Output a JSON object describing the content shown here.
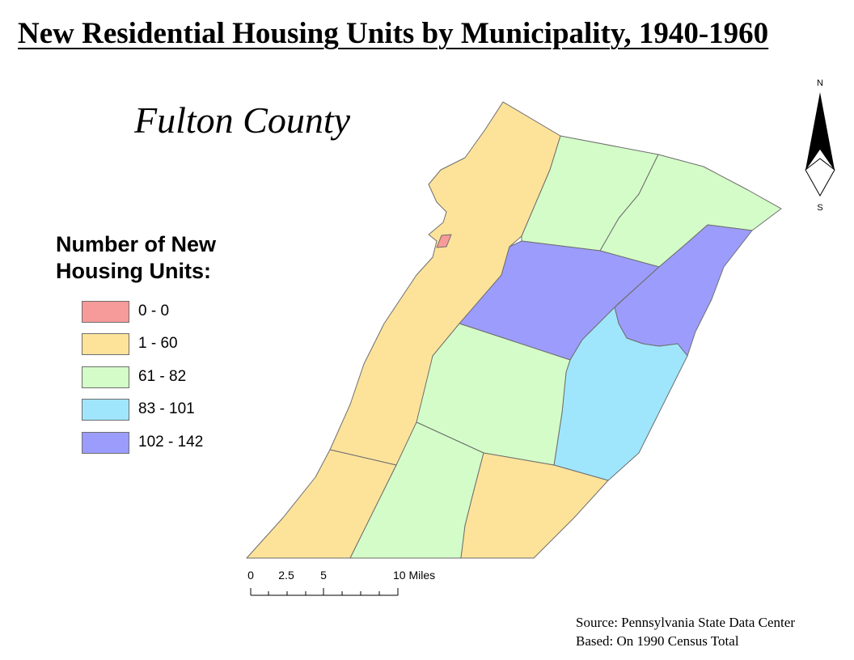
{
  "title": "New Residential Housing Units by Municipality, 1940-1960",
  "county": "Fulton County",
  "legend": {
    "title_line1": "Number of New",
    "title_line2": "Housing Units:",
    "classes": [
      {
        "label": "0 - 0",
        "color": "#f79a9a"
      },
      {
        "label": "1 - 60",
        "color": "#fde39a"
      },
      {
        "label": "61 - 82",
        "color": "#d4fcc8"
      },
      {
        "label": "83 - 101",
        "color": "#9fe6fd"
      },
      {
        "label": "102 - 142",
        "color": "#9c9cfc"
      }
    ]
  },
  "scale_bar": {
    "labels": [
      "0",
      "2.5",
      "5",
      "10 Miles"
    ]
  },
  "north_arrow": {
    "north": "N",
    "south": "S"
  },
  "source": {
    "line1": "Source: Pennsylvania State Data Center",
    "line2": "Based: On 1990 Census Total"
  }
}
